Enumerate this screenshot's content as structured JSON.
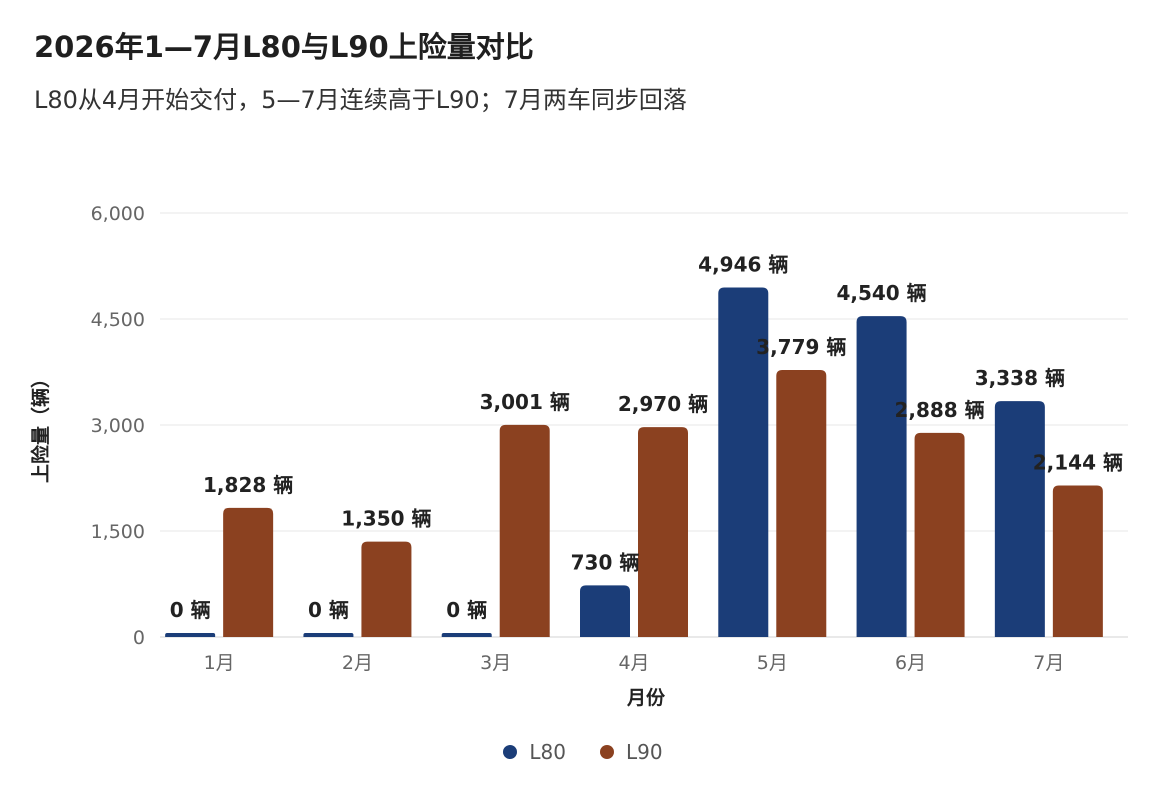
{
  "chart_data": {
    "type": "bar",
    "title": "2026年1—7月L80与L90上险量对比",
    "subtitle": "L80从4月开始交付，5—7月连续高于L90；7月两车同步回落",
    "xlabel": "月份",
    "ylabel": "上险量（辆）",
    "ylim": [
      0,
      6000
    ],
    "yticks": [
      0,
      1500,
      3000,
      4500,
      6000
    ],
    "ytick_labels": [
      "0",
      "1,500",
      "3,000",
      "4,500",
      "6,000"
    ],
    "categories": [
      "1月",
      "2月",
      "3月",
      "4月",
      "5月",
      "6月",
      "7月"
    ],
    "series": [
      {
        "name": "L80",
        "color": "#1b3d78",
        "values": [
          0,
          0,
          0,
          730,
          4946,
          4540,
          3338
        ],
        "labels": [
          "0 辆",
          "0 辆",
          "0 辆",
          "730 辆",
          "4,946 辆",
          "4,540 辆",
          "3,338 辆"
        ]
      },
      {
        "name": "L90",
        "color": "#8b4120",
        "values": [
          1828,
          1350,
          3001,
          2970,
          3779,
          2888,
          2144
        ],
        "labels": [
          "1,828 辆",
          "1,350 辆",
          "3,001 辆",
          "2,970 辆",
          "3,779 辆",
          "2,888 辆",
          "2,144 辆"
        ]
      }
    ],
    "grid": true,
    "legend_position": "bottom-center"
  }
}
